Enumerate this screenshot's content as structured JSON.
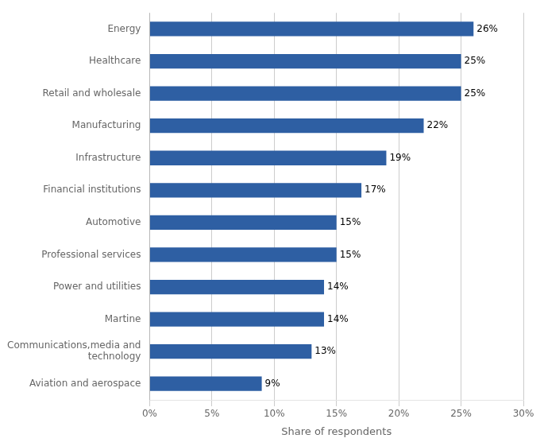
{
  "chart_data": {
    "type": "bar",
    "orientation": "horizontal",
    "categories": [
      "Aviation and aerospace",
      "Communications,media and\ntechnology",
      "Martine",
      "Power and utilities",
      "Professional services",
      "Automotive",
      "Financial institutions",
      "Infrastructure",
      "Manufacturing",
      "Retail and wholesale",
      "Healthcare",
      "Energy"
    ],
    "values": [
      9,
      13,
      14,
      14,
      15,
      15,
      17,
      19,
      22,
      25,
      25,
      26
    ],
    "value_labels": [
      "9%",
      "13%",
      "14%",
      "14%",
      "15%",
      "15%",
      "17%",
      "19%",
      "22%",
      "25%",
      "25%",
      "26%"
    ],
    "data_labels": true,
    "color": "#2e5fa3",
    "xlabel": "Share of respondents",
    "xlim": [
      0,
      30
    ],
    "xticks": [
      {
        "value": 0,
        "label": "0%"
      },
      {
        "value": 5,
        "label": "5%"
      },
      {
        "value": 10,
        "label": "10%"
      },
      {
        "value": 15,
        "label": "15%"
      },
      {
        "value": 20,
        "label": "20%"
      },
      {
        "value": 25,
        "label": "25%"
      },
      {
        "value": 30,
        "label": "30%"
      }
    ],
    "grid": true
  }
}
